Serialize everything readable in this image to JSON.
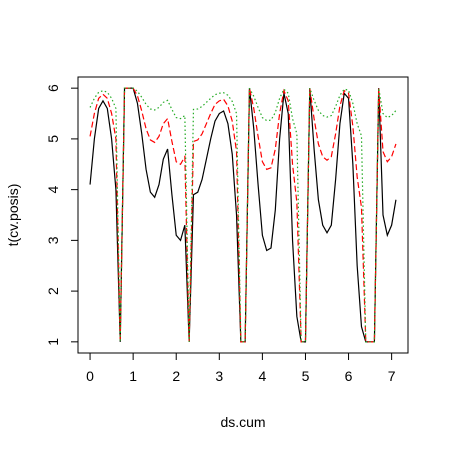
{
  "chart_data": {
    "type": "line",
    "x_label": "ds.cum",
    "y_label": "t(cv.posis)",
    "x": [
      0,
      0.1,
      0.2,
      0.3,
      0.4,
      0.5,
      0.6,
      0.7,
      0.8,
      0.9,
      1,
      1.1,
      1.2,
      1.3,
      1.4,
      1.5,
      1.6,
      1.7,
      1.8,
      1.9,
      2,
      2.1,
      2.2,
      2.3,
      2.4,
      2.5,
      2.6,
      2.7,
      2.8,
      2.9,
      3,
      3.1,
      3.2,
      3.3,
      3.4,
      3.5,
      3.6,
      3.7,
      3.8,
      3.9,
      4,
      4.1,
      4.2,
      4.3,
      4.4,
      4.5,
      4.6,
      4.7,
      4.8,
      4.9,
      5,
      5.1,
      5.2,
      5.3,
      5.4,
      5.5,
      5.6,
      5.7,
      5.8,
      5.9,
      6,
      6.1,
      6.2,
      6.3,
      6.4,
      6.5,
      6.6,
      6.7,
      6.8,
      6.9,
      7,
      7.1
    ],
    "series": [
      {
        "color": "#000000",
        "linestyle": "solid",
        "values": [
          4.1,
          5.0,
          5.6,
          5.75,
          5.6,
          5.0,
          4.0,
          1,
          6,
          6,
          6,
          5.7,
          5.1,
          4.4,
          3.95,
          3.85,
          4.1,
          4.6,
          4.8,
          3.9,
          3.1,
          3.0,
          3.3,
          1,
          3.9,
          3.95,
          4.2,
          4.6,
          5.0,
          5.35,
          5.5,
          5.55,
          5.3,
          4.7,
          3.5,
          1,
          1,
          6,
          5.2,
          4.1,
          3.1,
          2.8,
          2.85,
          3.6,
          5.0,
          5.9,
          5.5,
          3.0,
          1.5,
          1,
          1,
          6,
          4.8,
          3.8,
          3.3,
          3.15,
          3.3,
          4.2,
          5.3,
          5.9,
          5.8,
          4.5,
          2.5,
          1.3,
          1,
          1,
          1,
          6,
          3.5,
          3.1,
          3.3,
          3.8
        ]
      },
      {
        "color": "#ff0000",
        "linestyle": "dashed",
        "values": [
          5.05,
          5.5,
          5.8,
          5.88,
          5.8,
          5.5,
          5.0,
          1,
          6,
          6,
          6,
          5.85,
          5.55,
          5.2,
          4.98,
          4.93,
          5.05,
          5.3,
          5.4,
          4.95,
          4.55,
          4.5,
          4.65,
          1,
          4.95,
          4.98,
          5.1,
          5.3,
          5.5,
          5.68,
          5.75,
          5.78,
          5.65,
          5.35,
          4.75,
          1,
          1,
          6,
          5.6,
          5.05,
          4.55,
          4.4,
          4.43,
          4.8,
          5.5,
          5.95,
          5.75,
          4.5,
          3.75,
          1,
          1,
          6,
          5.4,
          4.9,
          4.65,
          4.58,
          4.65,
          5.1,
          5.65,
          5.95,
          5.9,
          5.25,
          4.25,
          3.65,
          1,
          1,
          1,
          6,
          4.75,
          4.55,
          4.65,
          4.9
        ]
      },
      {
        "color": "#22aa22",
        "linestyle": "dotted",
        "values": [
          5.62,
          5.8,
          5.92,
          5.95,
          5.92,
          5.8,
          5.6,
          1,
          6,
          6,
          6,
          5.94,
          5.82,
          5.68,
          5.59,
          5.57,
          5.62,
          5.72,
          5.76,
          5.58,
          5.42,
          5.4,
          5.46,
          1,
          5.58,
          5.59,
          5.64,
          5.72,
          5.8,
          5.87,
          5.9,
          5.91,
          5.86,
          5.74,
          5.5,
          1,
          1,
          6,
          5.84,
          5.62,
          5.42,
          5.36,
          5.37,
          5.52,
          5.8,
          5.98,
          5.9,
          5.4,
          5.1,
          1,
          1,
          6,
          5.76,
          5.56,
          5.46,
          5.43,
          5.46,
          5.64,
          5.86,
          5.98,
          5.96,
          5.7,
          5.3,
          5.06,
          1,
          1,
          1,
          6,
          5.5,
          5.42,
          5.46,
          5.56
        ]
      }
    ],
    "xlim": [
      -0.28,
      7.38
    ],
    "ylim": [
      0.78,
      6.22
    ],
    "xticks": [
      0,
      1,
      2,
      3,
      4,
      5,
      6,
      7
    ],
    "yticks": [
      1,
      2,
      3,
      4,
      5,
      6
    ]
  }
}
